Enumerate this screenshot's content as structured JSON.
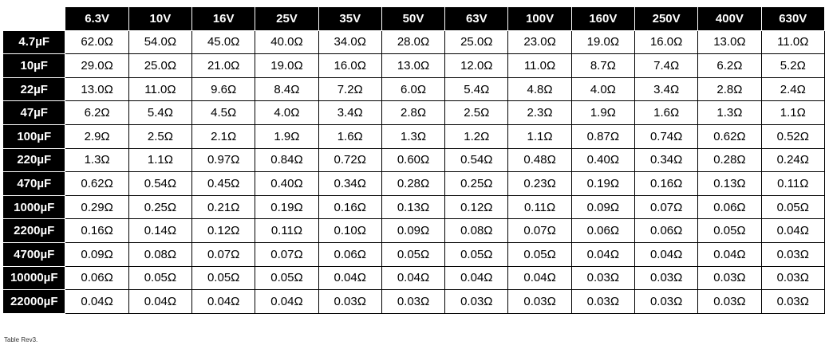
{
  "table": {
    "columns": [
      "6.3V",
      "10V",
      "16V",
      "25V",
      "35V",
      "50V",
      "63V",
      "100V",
      "160V",
      "250V",
      "400V",
      "630V"
    ],
    "rows": [
      {
        "label": "4.7µF",
        "values": [
          "62.0Ω",
          "54.0Ω",
          "45.0Ω",
          "40.0Ω",
          "34.0Ω",
          "28.0Ω",
          "25.0Ω",
          "23.0Ω",
          "19.0Ω",
          "16.0Ω",
          "13.0Ω",
          "11.0Ω"
        ]
      },
      {
        "label": "10µF",
        "values": [
          "29.0Ω",
          "25.0Ω",
          "21.0Ω",
          "19.0Ω",
          "16.0Ω",
          "13.0Ω",
          "12.0Ω",
          "11.0Ω",
          "8.7Ω",
          "7.4Ω",
          "6.2Ω",
          "5.2Ω"
        ]
      },
      {
        "label": "22µF",
        "values": [
          "13.0Ω",
          "11.0Ω",
          "9.6Ω",
          "8.4Ω",
          "7.2Ω",
          "6.0Ω",
          "5.4Ω",
          "4.8Ω",
          "4.0Ω",
          "3.4Ω",
          "2.8Ω",
          "2.4Ω"
        ]
      },
      {
        "label": "47µF",
        "values": [
          "6.2Ω",
          "5.4Ω",
          "4.5Ω",
          "4.0Ω",
          "3.4Ω",
          "2.8Ω",
          "2.5Ω",
          "2.3Ω",
          "1.9Ω",
          "1.6Ω",
          "1.3Ω",
          "1.1Ω"
        ]
      },
      {
        "label": "100µF",
        "values": [
          "2.9Ω",
          "2.5Ω",
          "2.1Ω",
          "1.9Ω",
          "1.6Ω",
          "1.3Ω",
          "1.2Ω",
          "1.1Ω",
          "0.87Ω",
          "0.74Ω",
          "0.62Ω",
          "0.52Ω"
        ]
      },
      {
        "label": "220µF",
        "values": [
          "1.3Ω",
          "1.1Ω",
          "0.97Ω",
          "0.84Ω",
          "0.72Ω",
          "0.60Ω",
          "0.54Ω",
          "0.48Ω",
          "0.40Ω",
          "0.34Ω",
          "0.28Ω",
          "0.24Ω"
        ]
      },
      {
        "label": "470µF",
        "values": [
          "0.62Ω",
          "0.54Ω",
          "0.45Ω",
          "0.40Ω",
          "0.34Ω",
          "0.28Ω",
          "0.25Ω",
          "0.23Ω",
          "0.19Ω",
          "0.16Ω",
          "0.13Ω",
          "0.11Ω"
        ]
      },
      {
        "label": "1000µF",
        "values": [
          "0.29Ω",
          "0.25Ω",
          "0.21Ω",
          "0.19Ω",
          "0.16Ω",
          "0.13Ω",
          "0.12Ω",
          "0.11Ω",
          "0.09Ω",
          "0.07Ω",
          "0.06Ω",
          "0.05Ω"
        ]
      },
      {
        "label": "2200µF",
        "values": [
          "0.16Ω",
          "0.14Ω",
          "0.12Ω",
          "0.11Ω",
          "0.10Ω",
          "0.09Ω",
          "0.08Ω",
          "0.07Ω",
          "0.06Ω",
          "0.06Ω",
          "0.05Ω",
          "0.04Ω"
        ]
      },
      {
        "label": "4700µF",
        "values": [
          "0.09Ω",
          "0.08Ω",
          "0.07Ω",
          "0.07Ω",
          "0.06Ω",
          "0.05Ω",
          "0.05Ω",
          "0.05Ω",
          "0.04Ω",
          "0.04Ω",
          "0.04Ω",
          "0.03Ω"
        ]
      },
      {
        "label": "10000µF",
        "values": [
          "0.06Ω",
          "0.05Ω",
          "0.05Ω",
          "0.05Ω",
          "0.04Ω",
          "0.04Ω",
          "0.04Ω",
          "0.04Ω",
          "0.03Ω",
          "0.03Ω",
          "0.03Ω",
          "0.03Ω"
        ]
      },
      {
        "label": "22000µF",
        "values": [
          "0.04Ω",
          "0.04Ω",
          "0.04Ω",
          "0.04Ω",
          "0.03Ω",
          "0.03Ω",
          "0.03Ω",
          "0.03Ω",
          "0.03Ω",
          "0.03Ω",
          "0.03Ω",
          "0.03Ω"
        ]
      }
    ]
  },
  "caption": "Table Rev3."
}
